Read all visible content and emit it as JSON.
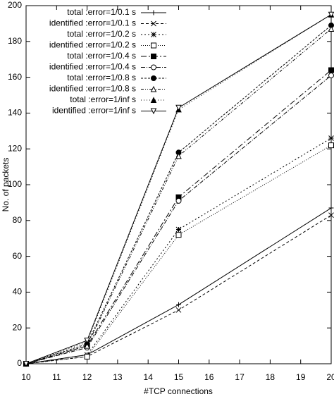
{
  "chart_data": {
    "type": "line",
    "xlabel": "#TCP connections",
    "ylabel": "No. of packets",
    "x": [
      10,
      12,
      15,
      20
    ],
    "xlim": [
      10,
      20
    ],
    "xticks": [
      10,
      11,
      12,
      13,
      14,
      15,
      16,
      17,
      18,
      19,
      20
    ],
    "ylim": [
      0,
      200
    ],
    "yticks": [
      0,
      20,
      40,
      60,
      80,
      100,
      120,
      140,
      160,
      180,
      200
    ],
    "legend": "top-left",
    "series": [
      {
        "name": "total :error=1/0.1 s",
        "color": "#000000",
        "values": [
          0,
          5,
          33,
          87
        ]
      },
      {
        "name": "identified :error=1/0.1 s",
        "color": "#000000",
        "values": [
          0,
          4,
          30,
          83
        ]
      },
      {
        "name": "total :error=1/0.2 s",
        "color": "#000000",
        "values": [
          0,
          5,
          75,
          126
        ]
      },
      {
        "name": "identified :error=1/0.2 s",
        "color": "#000000",
        "values": [
          0,
          4,
          72,
          122
        ]
      },
      {
        "name": "total :error=1/0.4 s",
        "color": "#000000",
        "values": [
          0,
          10,
          93,
          164
        ]
      },
      {
        "name": "identified :error=1/0.4 s",
        "color": "#000000",
        "values": [
          0,
          9,
          91,
          161
        ]
      },
      {
        "name": "total :error=1/0.8 s",
        "color": "#000000",
        "values": [
          0,
          11,
          118,
          189
        ]
      },
      {
        "name": "identified :error=1/0.8 s",
        "color": "#000000",
        "values": [
          0,
          10,
          116,
          187
        ]
      },
      {
        "name": "total :error=1/inf  s",
        "color": "#000000",
        "values": [
          0,
          12,
          142,
          195
        ]
      },
      {
        "name": "identified :error=1/inf  s",
        "color": "#000000",
        "values": [
          0,
          13,
          143,
          195
        ]
      }
    ]
  }
}
